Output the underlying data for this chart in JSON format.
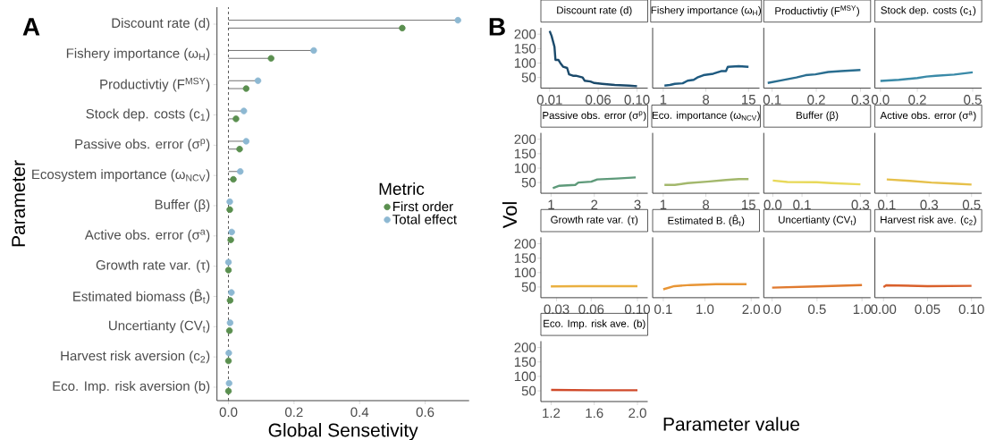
{
  "chart_data": [
    {
      "type": "lollipop",
      "orientation": "horizontal",
      "annotations": [
        "A"
      ],
      "xlabel": "Global Sensetivity",
      "ylabel": "Parameter",
      "legend_title": "Metric",
      "legend": "right",
      "categories": [
        "Discount rate (d)",
        "Fishery importance (ω$_{H}$)",
        "Productivtiy (F$^{MSY}$)",
        "Stock dep. costs (c$_{1}$)",
        "Passive obs. error (σ$^{p}$)",
        "Ecosystem importance (ω$_{NCV}$)",
        "Buffer (β)",
        "Active obs. error (σ$^{a}$)",
        "Growth rate var. (τ)",
        "Estimated biomass (B̂$_{t}$)",
        "Uncertianty (CV$_{t}$)",
        "Harvest risk aversion (c$_{2}$)",
        "Eco. Imp. risk aversion (b)"
      ],
      "series": [
        {
          "name": "First order",
          "color": "#5a8f4f",
          "values": [
            0.53,
            0.13,
            0.054,
            0.023,
            0.034,
            0.015,
            0.004,
            0.007,
            0.0,
            0.005,
            0.003,
            0.0,
            0.0
          ]
        },
        {
          "name": "Total effect",
          "color": "#8db8d2",
          "values": [
            0.7,
            0.26,
            0.09,
            0.047,
            0.054,
            0.036,
            0.004,
            0.01,
            0.0,
            0.009,
            0.005,
            0.001,
            0.002
          ]
        }
      ],
      "xlim": [
        -0.035,
        0.734
      ],
      "xticks": [
        {
          "value": 0,
          "label": "0.0"
        },
        0.2,
        0.4,
        0.6
      ],
      "ref_lines": [
        {
          "axis": "x",
          "value": 0,
          "line_style": "dashed",
          "color": "#555555"
        }
      ]
    },
    {
      "type": "line",
      "title": "Discount rate (d)",
      "annotations": [
        "B"
      ],
      "color": "#1b4a6b",
      "x": [
        0.01,
        0.012,
        0.015,
        0.016,
        0.019,
        0.021,
        0.024,
        0.028,
        0.03,
        0.034,
        0.037,
        0.044,
        0.046,
        0.052,
        0.056,
        0.064,
        0.077,
        0.092,
        0.1
      ],
      "values": [
        211,
        194,
        156,
        111,
        111,
        100,
        87,
        83,
        61,
        56,
        56,
        50,
        39,
        36,
        31,
        28,
        24,
        22,
        20
      ],
      "xlim": [
        0.001,
        0.111
      ],
      "xticks": [
        0.01,
        0.06,
        {
          "value": 0.1,
          "label": "0.10"
        }
      ],
      "ylim": [
        13,
        222
      ],
      "yticks": [
        50,
        100,
        150,
        200
      ]
    },
    {
      "type": "line",
      "title": "Fishery importance (ω$_{H}$)",
      "color": "#1e5a80",
      "tick_labels": "x",
      "x": [
        1.2,
        2.1,
        2.9,
        4.2,
        5.0,
        6.0,
        6.6,
        7.6,
        9.2,
        10.5,
        11.3,
        11.6,
        13.4,
        15
      ],
      "values": [
        22,
        24,
        28,
        30,
        39,
        42,
        50,
        58,
        63,
        72,
        72,
        87,
        89,
        87
      ],
      "xlim": [
        -0.74,
        16.8
      ],
      "xticks": [
        1,
        8,
        15
      ],
      "ylim": [
        13,
        222
      ]
    },
    {
      "type": "line",
      "title": "Productivtiy (F$^{MSY}$)",
      "color": "#2a6e90",
      "tick_labels": "x",
      "x": [
        0.09,
        0.118,
        0.155,
        0.176,
        0.198,
        0.227,
        0.256,
        0.3
      ],
      "values": [
        31,
        39,
        50,
        58,
        61,
        69,
        72,
        76
      ],
      "xlim": [
        0.081,
        0.323
      ],
      "xticks": [
        0.1,
        0.2,
        0.3
      ],
      "ylim": [
        13,
        222
      ]
    },
    {
      "type": "line",
      "title": "Stock dep. costs (c$_{1}$)",
      "color": "#3a8aa8",
      "tick_labels": "x",
      "x": [
        0.0,
        0.1,
        0.2,
        0.25,
        0.3,
        0.4,
        0.5
      ],
      "values": [
        38,
        42,
        48,
        53,
        56,
        60,
        68
      ],
      "xlim": [
        -0.03,
        0.549
      ],
      "xticks": [
        {
          "value": 0,
          "label": "0.0"
        },
        0.2,
        0.5
      ],
      "ylim": [
        13,
        222
      ]
    },
    {
      "type": "line",
      "title": "Passive obs. error (σ$^{p}$)",
      "ylabel": "Vol",
      "color": "#5e9a7a",
      "x": [
        1.04,
        1.19,
        1.56,
        1.63,
        1.93,
        2.07,
        2.52,
        2.96
      ],
      "values": [
        31,
        39,
        42,
        50,
        53,
        61,
        64,
        68
      ],
      "xlim": [
        0.763,
        3.237
      ],
      "xticks": [
        1,
        2,
        3
      ],
      "ylim": [
        13,
        222
      ],
      "yticks": [
        50,
        100,
        150,
        200
      ]
    },
    {
      "type": "line",
      "title": "Eco. importance (ω$_{NCV}$)",
      "color": "#a3b86c",
      "tick_labels": "x",
      "x": [
        1.2,
        2.9,
        5.0,
        8.2,
        11.3,
        13.4,
        15
      ],
      "values": [
        42,
        42,
        48,
        53,
        59,
        62,
        62
      ],
      "xlim": [
        -0.74,
        16.8
      ],
      "xticks": [
        1,
        8,
        15
      ],
      "ylim": [
        13,
        222
      ]
    },
    {
      "type": "line",
      "title": "Buffer (β)",
      "color": "#e8d95a",
      "tick_labels": "x",
      "x": [
        0.0,
        0.05,
        0.15,
        0.2,
        0.3
      ],
      "values": [
        57,
        52,
        51,
        48,
        44
      ],
      "xlim": [
        -0.031,
        0.335
      ],
      "xticks": [
        {
          "value": 0,
          "label": "0.0"
        },
        0.1,
        0.3
      ],
      "ylim": [
        13,
        222
      ]
    },
    {
      "type": "line",
      "title": "Active obs. error (σ$^{a}$)",
      "color": "#e6c04a",
      "tick_labels": "x",
      "x": [
        0.1,
        0.21,
        0.31,
        0.43,
        0.5
      ],
      "values": [
        61,
        56,
        50,
        46,
        43
      ],
      "xlim": [
        0.044,
        0.548
      ],
      "xticks": [
        0.1,
        0.3,
        0.5
      ],
      "ylim": [
        13,
        222
      ]
    },
    {
      "type": "line",
      "title": "Growth rate var. (τ)",
      "color": "#eab040",
      "x": [
        0.025,
        0.05,
        0.075,
        0.1
      ],
      "values": [
        52,
        53,
        53,
        53
      ],
      "xlim": [
        0.0164,
        0.1089
      ],
      "xticks": [
        0.03,
        0.06,
        {
          "value": 0.1,
          "label": "0.10"
        }
      ],
      "ylim": [
        13,
        222
      ],
      "yticks": [
        50,
        100,
        150,
        200
      ]
    },
    {
      "type": "line",
      "title": "Estimated B. (B̂$_{t}$)",
      "color": "#e89535",
      "tick_labels": "x",
      "x": [
        0.1,
        0.34,
        0.69,
        1.24,
        1.9
      ],
      "values": [
        42,
        53,
        57,
        60,
        60
      ],
      "xlim": [
        -0.13,
        2.18
      ],
      "xticks": [
        0.1,
        {
          "value": 1,
          "label": "1.0"
        },
        {
          "value": 2,
          "label": "2.0"
        }
      ],
      "ylim": [
        13,
        222
      ]
    },
    {
      "type": "line",
      "title": "Uncertianty (CV$_{t}$)",
      "color": "#e07a2f",
      "tick_labels": "x",
      "x": [
        0.0,
        0.5,
        1.0
      ],
      "values": [
        48,
        52,
        57
      ],
      "xlim": [
        -0.093,
        1.096
      ],
      "xticks": [
        {
          "value": 0,
          "label": "0.0"
        },
        0.5,
        {
          "value": 1,
          "label": "1.0"
        }
      ],
      "ylim": [
        13,
        222
      ]
    },
    {
      "type": "line",
      "title": "Harvest risk ave. (c$_{2}$)",
      "color": "#d9602b",
      "tick_labels": "x",
      "x": [
        0.0,
        0.003,
        0.05,
        0.1
      ],
      "values": [
        50,
        56,
        53,
        54
      ],
      "xlim": [
        -0.0098,
        0.1116
      ],
      "xticks": [
        {
          "value": 0,
          "label": "0.00"
        },
        0.05,
        {
          "value": 0.1,
          "label": "0.10"
        }
      ],
      "ylim": [
        13,
        222
      ]
    },
    {
      "type": "line",
      "title": "Eco. Imp. risk ave. (b)",
      "xlabel": "Parameter value",
      "color": "#d04a2a",
      "x": [
        1.2,
        1.6,
        2.0
      ],
      "values": [
        53,
        52,
        52
      ],
      "xlim": [
        1.105,
        2.095
      ],
      "xticks": [
        1.2,
        1.6,
        {
          "value": 2,
          "label": "2.0"
        }
      ],
      "ylim": [
        13,
        222
      ],
      "yticks": [
        50,
        100,
        150,
        200
      ]
    }
  ]
}
